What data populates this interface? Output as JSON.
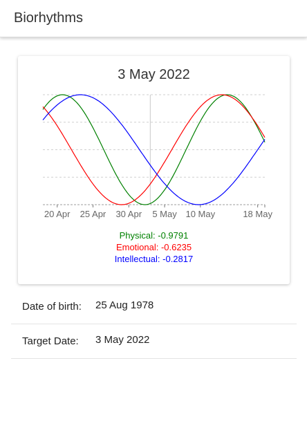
{
  "app": {
    "title": "Biorhythms"
  },
  "chart": {
    "title": "3 May 2022",
    "legend": {
      "physical": "Physical: -0.9791",
      "emotional": "Emotional: -0.6235",
      "intellectual": "Intellectual: -0.2817"
    }
  },
  "form": {
    "dob_label": "Date of birth:",
    "dob_value": "25 Aug 1978",
    "target_label": "Target Date:",
    "target_value": "3 May 2022"
  },
  "colors": {
    "physical": "#008000",
    "emotional": "#ff0000",
    "intellectual": "#0000ff"
  },
  "chart_data": {
    "type": "line",
    "title": "3 May 2022",
    "x_range": [
      "2022-04-18",
      "2022-05-19"
    ],
    "y_range": [
      -1,
      1
    ],
    "target_date": "2022-05-03",
    "x_tick_labels": [
      "20 Apr",
      "25 Apr",
      "30 Apr",
      "5 May",
      "10 May",
      "18 May"
    ],
    "x_tick_dates": [
      "2022-04-20",
      "2022-04-25",
      "2022-04-30",
      "2022-05-05",
      "2022-05-10",
      "2022-05-18"
    ],
    "grid": true,
    "series": [
      {
        "name": "Physical",
        "period_days": 23,
        "value_on_target": -0.9791,
        "color": "#008000"
      },
      {
        "name": "Emotional",
        "period_days": 28,
        "value_on_target": -0.6235,
        "color": "#ff0000"
      },
      {
        "name": "Intellectual",
        "period_days": 33,
        "value_on_target": -0.2817,
        "color": "#0000ff"
      }
    ]
  }
}
